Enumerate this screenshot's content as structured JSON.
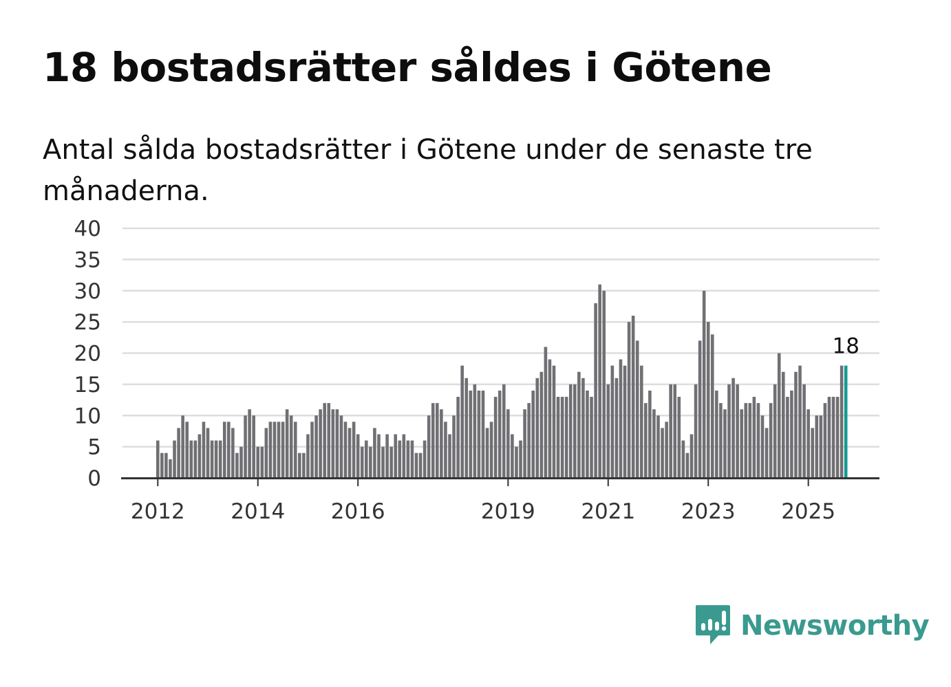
{
  "header": {
    "title": "18 bostadsrätter såldes i Götene",
    "subtitle": "Antal sålda bostadsrätter i Götene under de senaste tre månaderna."
  },
  "brand": {
    "name": "Newsworthy",
    "icon": "newsworthy-logo-icon",
    "color": "#3a9a8f"
  },
  "colors": {
    "bar": "#707074",
    "highlight": "#159a92",
    "grid": "#dddddd",
    "axis": "#333333"
  },
  "chart_data": {
    "type": "bar",
    "title": "Antal sålda bostadsrätter i Götene under de senaste tre månaderna.",
    "xlabel": "",
    "ylabel": "",
    "ylim": [
      0,
      40
    ],
    "yticks": [
      0,
      5,
      10,
      15,
      20,
      25,
      30,
      35,
      40
    ],
    "start": "2012-01",
    "frequency": "monthly",
    "xtick_labels": [
      {
        "label": "2012",
        "index": 0
      },
      {
        "label": "2014",
        "index": 24
      },
      {
        "label": "2016",
        "index": 48
      },
      {
        "label": "2019",
        "index": 84
      },
      {
        "label": "2021",
        "index": 108
      },
      {
        "label": "2023",
        "index": 132
      },
      {
        "label": "2025",
        "index": 156
      }
    ],
    "values": [
      6,
      4,
      4,
      3,
      6,
      8,
      10,
      9,
      6,
      6,
      7,
      9,
      8,
      6,
      6,
      6,
      9,
      9,
      8,
      4,
      5,
      10,
      11,
      10,
      5,
      5,
      8,
      9,
      9,
      9,
      9,
      11,
      10,
      9,
      4,
      4,
      7,
      9,
      10,
      11,
      12,
      12,
      11,
      11,
      10,
      9,
      8,
      9,
      7,
      5,
      6,
      5,
      8,
      7,
      5,
      7,
      5,
      7,
      6,
      7,
      6,
      6,
      4,
      4,
      6,
      10,
      12,
      12,
      11,
      9,
      7,
      10,
      13,
      18,
      16,
      14,
      15,
      14,
      14,
      8,
      9,
      13,
      14,
      15,
      11,
      7,
      5,
      6,
      11,
      12,
      14,
      16,
      17,
      21,
      19,
      18,
      13,
      13,
      13,
      15,
      15,
      17,
      16,
      14,
      13,
      28,
      31,
      30,
      15,
      18,
      16,
      19,
      18,
      25,
      26,
      22,
      18,
      12,
      14,
      11,
      10,
      8,
      9,
      15,
      15,
      13,
      6,
      4,
      7,
      15,
      22,
      30,
      25,
      23,
      14,
      12,
      11,
      15,
      16,
      15,
      11,
      12,
      12,
      13,
      12,
      10,
      8,
      12,
      15,
      20,
      17,
      13,
      14,
      17,
      18,
      15,
      11,
      8,
      10,
      10,
      12,
      13,
      13,
      13,
      18,
      18
    ],
    "highlight": {
      "index": 165,
      "value": 18,
      "label": "18"
    }
  }
}
